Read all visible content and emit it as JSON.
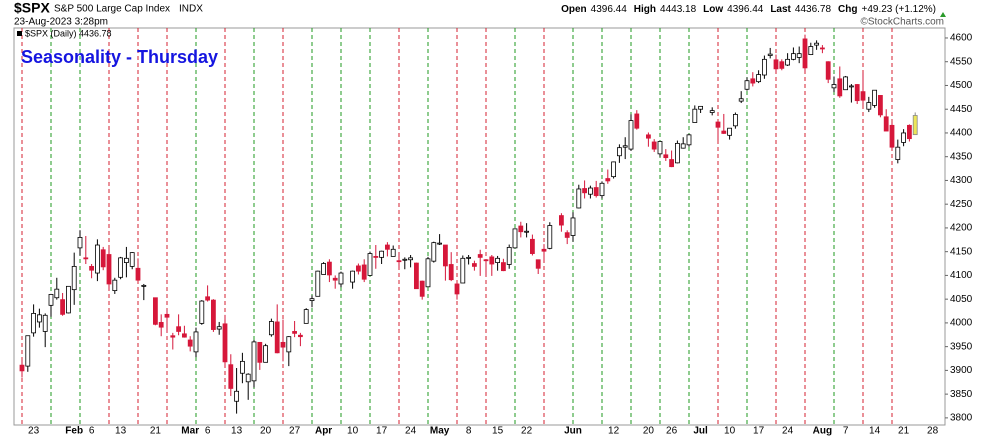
{
  "header": {
    "symbol": "$SPX",
    "name": "S&P 500 Large Cap Index",
    "exchange": "INDX",
    "datetime": "23-Aug-2023 3:28pm",
    "quote": [
      {
        "label": "Open",
        "value": "4396.44"
      },
      {
        "label": "High",
        "value": "4443.18"
      },
      {
        "label": "Low",
        "value": "4396.44"
      },
      {
        "label": "Last",
        "value": "4436.78"
      },
      {
        "label": "Chg",
        "value": "+49.23 (+1.12%)"
      }
    ],
    "credit": "©StockCharts.com"
  },
  "chart_data": {
    "type": "candlestick",
    "legend": "$SPX (Daily) 4436.78",
    "annotation": "Seasonality - Thursday",
    "categories": [
      null,
      null,
      "23",
      null,
      null,
      null,
      null,
      null,
      null,
      "Feb",
      null,
      null,
      "6",
      null,
      null,
      null,
      null,
      "13",
      null,
      null,
      null,
      null,
      null,
      "21",
      null,
      null,
      null,
      null,
      null,
      "Mar",
      null,
      null,
      "6",
      null,
      null,
      null,
      null,
      "13",
      null,
      null,
      null,
      null,
      "20",
      null,
      null,
      null,
      null,
      "27",
      null,
      null,
      null,
      null,
      "Apr",
      null,
      null,
      null,
      null,
      "10",
      null,
      null,
      null,
      null,
      "17",
      null,
      null,
      null,
      null,
      "24",
      null,
      null,
      null,
      null,
      "May",
      null,
      null,
      null,
      null,
      "8",
      null,
      null,
      null,
      null,
      "15",
      null,
      null,
      null,
      null,
      "22",
      null,
      null,
      null,
      null,
      null,
      null,
      null,
      "Jun",
      null,
      null,
      null,
      null,
      null,
      null,
      "12",
      null,
      null,
      null,
      null,
      null,
      "20",
      null,
      null,
      null,
      "26",
      null,
      null,
      null,
      null,
      "Jul",
      null,
      null,
      null,
      null,
      "10",
      null,
      null,
      null,
      null,
      "17",
      null,
      null,
      null,
      null,
      "24",
      null,
      null,
      null,
      null,
      null,
      "Aug",
      null,
      null,
      null,
      "7",
      null,
      null,
      null,
      null,
      "14",
      null,
      null,
      null,
      null,
      "21",
      null,
      null,
      null,
      null,
      "28",
      null,
      null
    ],
    "open": [
      3911,
      3909,
      3979,
      4002,
      3982,
      4037,
      4053,
      4049,
      4021,
      4070,
      4158,
      4137,
      4119,
      4105,
      4154,
      4144,
      4068,
      4096,
      4127,
      4119,
      4115,
      4077,
      null,
      4053,
      4001,
      4018,
      3973,
      3992,
      3977,
      3964,
      3939,
      3999,
      4055,
      4048,
      3987,
      3998,
      3912,
      3835,
      3894,
      3876,
      3878,
      3959,
      3917,
      3975,
      4002,
      3959,
      3939,
      3982,
      3974,
      3999,
      4047,
      4056,
      4102,
      4128,
      4094,
      4082,
      null,
      4086,
      4120,
      4122,
      4100,
      4140,
      4138,
      4164,
      4140,
      4131,
      4132,
      4133,
      4126,
      4088,
      4076,
      4130,
      4166,
      4164,
      4123,
      4082,
      4084,
      4136,
      4125,
      4144,
      4133,
      4139,
      4127,
      4127,
      4123,
      4158,
      4204,
      4191,
      4176,
      4133,
      4155,
      4157,
      null,
      4226,
      4190,
      4184,
      4242,
      4283,
      4271,
      4285,
      4268,
      4304,
      4308,
      4352,
      4370,
      4366,
      4440,
      null,
      4396,
      4381,
      4356,
      4354,
      4344,
      4337,
      4368,
      4375,
      4422,
      4450,
      null,
      4443,
      4423,
      4404,
      4395,
      4415,
      4467,
      4492,
      4514,
      4508,
      4522,
      4563,
      4554,
      4550,
      4543,
      4555,
      4559,
      4598,
      4565,
      4585,
      4579,
      4550,
      4495,
      4514,
      4491,
      4499,
      4502,
      4487,
      4450,
      4458,
      4479,
      4434,
      4416,
      4344,
      4380,
      4416,
      4396.44,
      null,
      null,
      null,
      null,
      null
    ],
    "high": [
      3922,
      3973,
      4039,
      4030,
      4020,
      4061,
      4095,
      4063,
      4077,
      4148,
      4195,
      4183,
      4124,
      4176,
      4160,
      4157,
      4095,
      4139,
      4160,
      4149,
      4136,
      4082,
      null,
      4053,
      4018,
      4029,
      3979,
      4018,
      3994,
      3972,
      3990,
      4048,
      4079,
      4050,
      4002,
      4017,
      3934,
      3905,
      3937,
      3894,
      3964,
      3959,
      3956,
      4009,
      4039,
      4007,
      3972,
      4004,
      3979,
      4031,
      4058,
      4110,
      4128,
      4134,
      4100,
      4108,
      null,
      4110,
      4125,
      4134,
      4150,
      4164,
      4152,
      4170,
      4163,
      4149,
      4138,
      4143,
      4127,
      4089,
      4139,
      4171,
      4187,
      4164,
      4149,
      4082,
      4142,
      4143,
      4131,
      4154,
      4133,
      4143,
      4141,
      4135,
      4165,
      4199,
      4213,
      4210,
      4186,
      4133,
      4166,
      4212,
      null,
      4231,
      4195,
      4233,
      4291,
      4300,
      4289,
      4299,
      4298,
      4323,
      4340,
      4376,
      4391,
      4439,
      4448,
      null,
      4401,
      4387,
      4382,
      4366,
      4363,
      4384,
      4391,
      4398,
      4458,
      4456,
      null,
      4454,
      4423,
      4440,
      4410,
      4443,
      4488,
      4517,
      4528,
      4532,
      4563,
      4579,
      4565,
      4555,
      4568,
      4580,
      4582,
      4607,
      4590,
      4595,
      4585,
      4551,
      4519,
      4540,
      4520,
      4503,
      4503,
      4527,
      4476,
      4490,
      4479,
      4450,
      4421,
      4386,
      4408,
      4418,
      4443.18,
      null,
      null,
      null,
      null,
      null
    ],
    "low": [
      3885,
      3897,
      3971,
      3990,
      3949,
      4013,
      4049,
      4015,
      4020,
      4038,
      4142,
      4124,
      4094,
      4088,
      4111,
      4069,
      4061,
      4092,
      4096,
      4113,
      4088,
      4048,
      null,
      3995,
      3972,
      3979,
      3944,
      3974,
      3969,
      3940,
      3928,
      3996,
      4045,
      3981,
      3975,
      3908,
      3846,
      3809,
      3873,
      3838,
      3864,
      3901,
      3917,
      3971,
      3936,
      3919,
      3909,
      3970,
      3951,
      3999,
      4033,
      4056,
      4102,
      4086,
      4072,
      4075,
      null,
      4072,
      4102,
      4086,
      4100,
      4114,
      4124,
      4140,
      4140,
      4115,
      4113,
      4117,
      4072,
      4049,
      4076,
      4127,
      4164,
      4089,
      4088,
      4049,
      4084,
      4123,
      4110,
      4099,
      4099,
      4099,
      4110,
      4109,
      4114,
      4157,
      4180,
      4180,
      4142,
      4103,
      4129,
      4155,
      null,
      4192,
      4166,
      4171,
      4241,
      4262,
      4262,
      4264,
      4262,
      4293,
      4304,
      4337,
      4345,
      4362,
      4407,
      null,
      4371,
      4360,
      4350,
      4341,
      4328,
      4336,
      4367,
      4371,
      4422,
      4442,
      null,
      4437,
      4385,
      4398,
      4386,
      4409,
      4463,
      4489,
      4498,
      4505,
      4514,
      4557,
      4527,
      4532,
      4541,
      4553,
      4547,
      4528,
      4564,
      4575,
      4568,
      4505,
      4486,
      4474,
      4491,
      4464,
      4461,
      4458,
      4444,
      4453,
      4433,
      4404,
      4365,
      4336,
      4372,
      4382,
      4396.44,
      null,
      null,
      null,
      null,
      null
    ],
    "close": [
      3899,
      3973,
      4020,
      4017,
      4016,
      4060,
      4071,
      4018,
      4077,
      4119,
      4180,
      4136,
      4111,
      4164,
      4118,
      4082,
      4090,
      4137,
      4136,
      4148,
      4090,
      4079,
      null,
      3997,
      3991,
      4012,
      3970,
      3982,
      3970,
      3951,
      3981,
      4046,
      4048,
      3986,
      3992,
      3918,
      3862,
      3856,
      3919,
      3892,
      3960,
      3917,
      3952,
      4003,
      3937,
      3949,
      3971,
      3978,
      3971,
      4028,
      4051,
      4109,
      4125,
      4101,
      4090,
      4105,
      null,
      4109,
      4109,
      4092,
      4146,
      4138,
      4151,
      4155,
      4155,
      4130,
      4134,
      4137,
      4072,
      4056,
      4135,
      4169,
      4168,
      4120,
      4091,
      4061,
      4136,
      4138,
      4119,
      4138,
      4131,
      4124,
      4136,
      4110,
      4159,
      4198,
      4192,
      4193,
      4146,
      4115,
      4151,
      4205,
      null,
      4206,
      4180,
      4221,
      4282,
      4274,
      4284,
      4268,
      4294,
      4299,
      4339,
      4369,
      4373,
      4426,
      4410,
      null,
      4389,
      4366,
      4382,
      4348,
      4329,
      4378,
      4377,
      4396,
      4450,
      4456,
      null,
      4447,
      4412,
      4399,
      4410,
      4439,
      4472,
      4510,
      4505,
      4523,
      4555,
      4566,
      4535,
      4536,
      4555,
      4567,
      4567,
      4537,
      4582,
      4589,
      4577,
      4513,
      4502,
      4478,
      4518,
      4499,
      4468,
      4469,
      4464,
      4490,
      4438,
      4404,
      4370,
      4370,
      4400,
      4388,
      4436.78,
      null,
      null,
      null,
      null,
      null
    ],
    "ylim": [
      3785,
      4621
    ],
    "yticks": [
      3800,
      3850,
      3900,
      3950,
      4000,
      4050,
      4100,
      4150,
      4200,
      4250,
      4300,
      4350,
      4400,
      4450,
      4500,
      4550,
      4600
    ],
    "up_color": "#000000",
    "down_color": "#d6173a",
    "last_color": "#ece65a",
    "thursday_up_color": "#1f9a1f",
    "thursday_down_color": "#d42030"
  }
}
